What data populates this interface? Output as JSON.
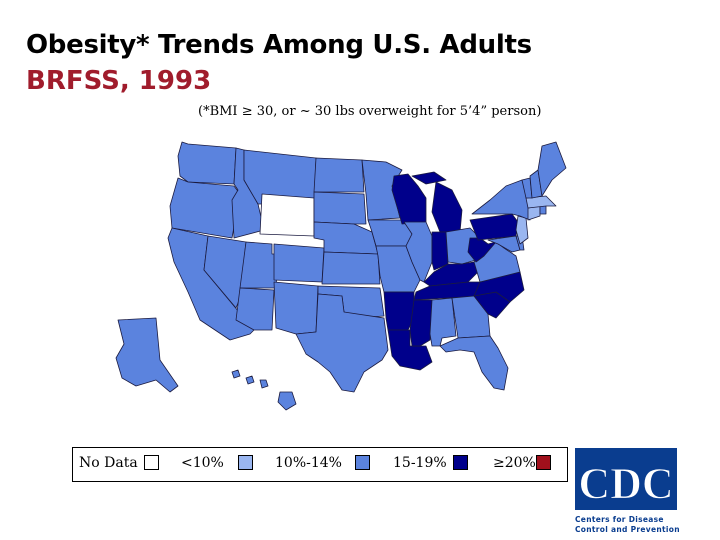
{
  "title": {
    "line1": "Obesity* Trends Among U.S. Adults",
    "line2": "BRFSS, 1993"
  },
  "subtitle": "(*BMI ≥ 30, or ~ 30 lbs overweight for 5’4” person)",
  "legend": [
    {
      "label": "No Data",
      "color": "#ffffff"
    },
    {
      "label": "<10%",
      "color": "#9ab6f0"
    },
    {
      "label": "10%-14%",
      "color": "#5b83de"
    },
    {
      "label": "15-19%",
      "color": "#00008b"
    },
    {
      "label": "≥20%",
      "color": "#a0101c"
    }
  ],
  "categories": {
    "no_data": [
      "Wyoming"
    ],
    "under_10": [
      "Massachusetts",
      "Connecticut",
      "New Jersey"
    ],
    "10_to_14": [
      "Washington",
      "Oregon",
      "California",
      "Nevada",
      "Idaho",
      "Montana",
      "Utah",
      "Arizona",
      "Colorado",
      "New Mexico",
      "North Dakota",
      "South Dakota",
      "Nebraska",
      "Kansas",
      "Oklahoma",
      "Texas",
      "Minnesota",
      "Iowa",
      "Missouri",
      "Illinois",
      "Ohio",
      "Alabama",
      "Georgia",
      "Florida",
      "Virginia",
      "Maryland",
      "Delaware",
      "New York",
      "Vermont",
      "New Hampshire",
      "Maine",
      "Rhode Island",
      "Alaska",
      "Hawaii"
    ],
    "15_to_19": [
      "Wisconsin",
      "Michigan",
      "Indiana",
      "Kentucky",
      "Tennessee",
      "West Virginia",
      "Pennsylvania",
      "North Carolina",
      "South Carolina",
      "Arkansas",
      "Louisiana",
      "Mississippi"
    ],
    "20_plus": []
  },
  "logo": {
    "text": "CDC",
    "tagline_line1": "Centers for Disease",
    "tagline_line2": "Control and Prevention"
  },
  "colors": {
    "title_accent": "#a01c2c",
    "logo_blue": "#0a3d8f"
  }
}
